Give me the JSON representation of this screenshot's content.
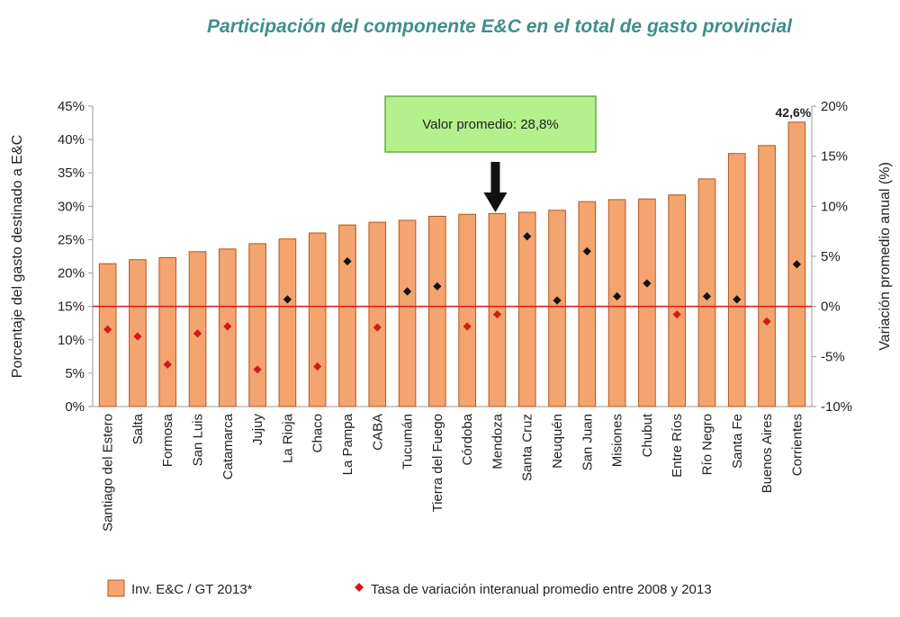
{
  "chart_data": {
    "type": "bar",
    "title": "Participación del componente E&C en el total de gasto provincial",
    "ylabel": "Porcentaje del gasto destinado a  E&C",
    "y2label": "Variación promedio anual (%)",
    "ylim": [
      0,
      45
    ],
    "y2lim": [
      -10,
      20
    ],
    "yticks": [
      "0%",
      "5%",
      "10%",
      "15%",
      "20%",
      "25%",
      "30%",
      "35%",
      "40%",
      "45%"
    ],
    "y2ticks": [
      "-10%",
      "-5%",
      "0%",
      "5%",
      "10%",
      "15%",
      "20%"
    ],
    "categories": [
      "Santiago del Estero",
      "Salta",
      "Formosa",
      "San Luis",
      "Catamarca",
      "Jujuy",
      "La Rioja",
      "Chaco",
      "La Pampa",
      "CABA",
      "Tucumán",
      "Tierra del Fuego",
      "Córdoba",
      "Mendoza",
      "Santa Cruz",
      "Neuquén",
      "San Juan",
      "Misiones",
      "Chubut",
      "Entre Ríos",
      "Río Negro",
      "Santa Fe",
      "Buenos Aires",
      "Corrientes"
    ],
    "series": [
      {
        "name": "Inv. E&C / GT  2013*",
        "axis": "left",
        "color": "#f4a46e",
        "values": [
          21.4,
          22.0,
          22.3,
          23.2,
          23.6,
          24.4,
          25.1,
          26.0,
          27.2,
          27.6,
          27.9,
          28.5,
          28.8,
          28.9,
          29.1,
          29.4,
          30.7,
          31.0,
          31.1,
          31.7,
          34.1,
          37.9,
          39.1,
          42.6
        ]
      },
      {
        "name": "Tasa de variación interanual promedio entre 2008 y 2013",
        "axis": "right",
        "type": "scatter",
        "values": [
          -2.3,
          -3.0,
          -5.8,
          -2.7,
          -2.0,
          -6.3,
          0.7,
          -6.0,
          4.5,
          -2.1,
          1.5,
          2.0,
          -2.0,
          -0.8,
          7.0,
          0.6,
          5.5,
          1.0,
          2.3,
          -0.8,
          1.0,
          0.7,
          -1.5,
          4.2
        ]
      }
    ],
    "data_labels": {
      "Corrientes": "42,6%"
    },
    "reference_line": {
      "axis": "right",
      "value": 0,
      "color": "#e02020"
    },
    "annotation": {
      "text": "Valor promedio: 28,8%",
      "target": "Mendoza"
    },
    "legend": {
      "position": "bottom"
    },
    "colors": {
      "bar": "#f4a46e",
      "bar_stroke": "#b5561e",
      "marker_dark": "#111111",
      "marker_red": "#d11a1a",
      "callout_fill": "#b4f08c",
      "callout_stroke": "#6aaa44"
    }
  }
}
